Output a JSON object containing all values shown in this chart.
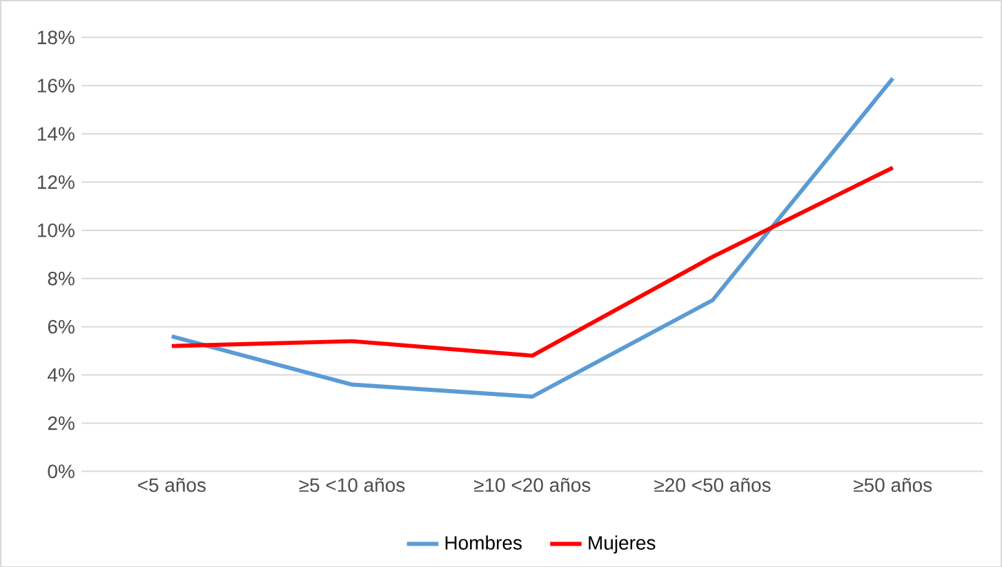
{
  "chart_data": {
    "type": "line",
    "categories": [
      "<5 años",
      "≥5  <10 años",
      "≥10 <20 años",
      "≥20 <50 años",
      "≥50 años"
    ],
    "series": [
      {
        "name": "Hombres",
        "color": "#5b9bd5",
        "values": [
          5.6,
          3.6,
          3.1,
          7.1,
          16.3
        ]
      },
      {
        "name": "Mujeres",
        "color": "#ff0000",
        "values": [
          5.2,
          5.4,
          4.8,
          8.9,
          12.6
        ]
      }
    ],
    "ylim": [
      0,
      18
    ],
    "yticks": [
      {
        "value": 0,
        "label": "0%"
      },
      {
        "value": 2,
        "label": "2%"
      },
      {
        "value": 4,
        "label": "4%"
      },
      {
        "value": 6,
        "label": "6%"
      },
      {
        "value": 8,
        "label": "8%"
      },
      {
        "value": 10,
        "label": "10%"
      },
      {
        "value": 12,
        "label": "12%"
      },
      {
        "value": 14,
        "label": "14%"
      },
      {
        "value": 16,
        "label": "16%"
      },
      {
        "value": 18,
        "label": "18%"
      }
    ],
    "grid": "y",
    "legend": "bottom",
    "marker": "none",
    "line_style": "solid"
  }
}
